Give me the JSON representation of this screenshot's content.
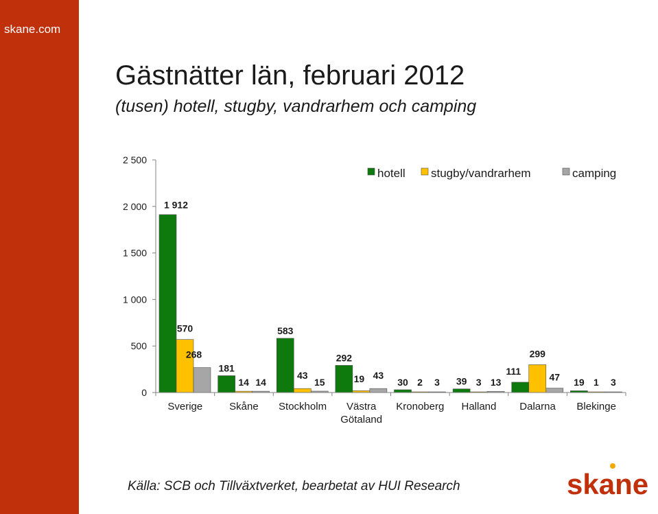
{
  "site": {
    "name": "skane.com"
  },
  "header": {
    "title": "Gästnätter län, februari 2012",
    "subtitle": "(tusen) hotell, stugby, vandrarhem och camping"
  },
  "footer": {
    "source": "Källa: SCB och Tillväxtverket, bearbetat av HUI Research",
    "logo_text": "skane"
  },
  "colors": {
    "brand": "#c0300b",
    "hotell": "#0e7a0d",
    "stugby": "#ffc000",
    "camping": "#a6a6a6"
  },
  "chart_data": {
    "type": "bar",
    "title": "Gästnätter län, februari 2012",
    "subtitle": "(tusen) hotell, stugby, vandrarhem och camping",
    "categories": [
      [
        "Sverige"
      ],
      [
        "Skåne"
      ],
      [
        "Stockholm"
      ],
      [
        "Västra",
        "Götaland"
      ],
      [
        "Kronoberg"
      ],
      [
        "Halland"
      ],
      [
        "Dalarna"
      ],
      [
        "Blekinge"
      ]
    ],
    "series": [
      {
        "name": "hotell",
        "color": "#0e7a0d",
        "values": [
          1912,
          181,
          583,
          292,
          30,
          39,
          111,
          19
        ],
        "labels": [
          "1 912",
          "181",
          "583",
          "292",
          "30",
          "39",
          "111",
          "19"
        ]
      },
      {
        "name": "stugby/vandrarhem",
        "color": "#ffc000",
        "values": [
          570,
          14,
          43,
          19,
          2,
          3,
          299,
          1
        ],
        "labels": [
          "570",
          "14",
          "43",
          "19",
          "2",
          "3",
          "299",
          "1"
        ]
      },
      {
        "name": "camping",
        "color": "#a6a6a6",
        "values": [
          268,
          14,
          15,
          43,
          3,
          13,
          47,
          3
        ],
        "labels": [
          "268",
          "14",
          "15",
          "43",
          "3",
          "13",
          "47",
          "3"
        ]
      }
    ],
    "ylim": [
      0,
      2500
    ],
    "yticks": [
      0,
      500,
      1000,
      1500,
      2000,
      2500
    ],
    "ytick_labels": [
      "0",
      "500",
      "1 000",
      "1 500",
      "2 000",
      "2 500"
    ],
    "grid": false,
    "legend": "top-right"
  }
}
